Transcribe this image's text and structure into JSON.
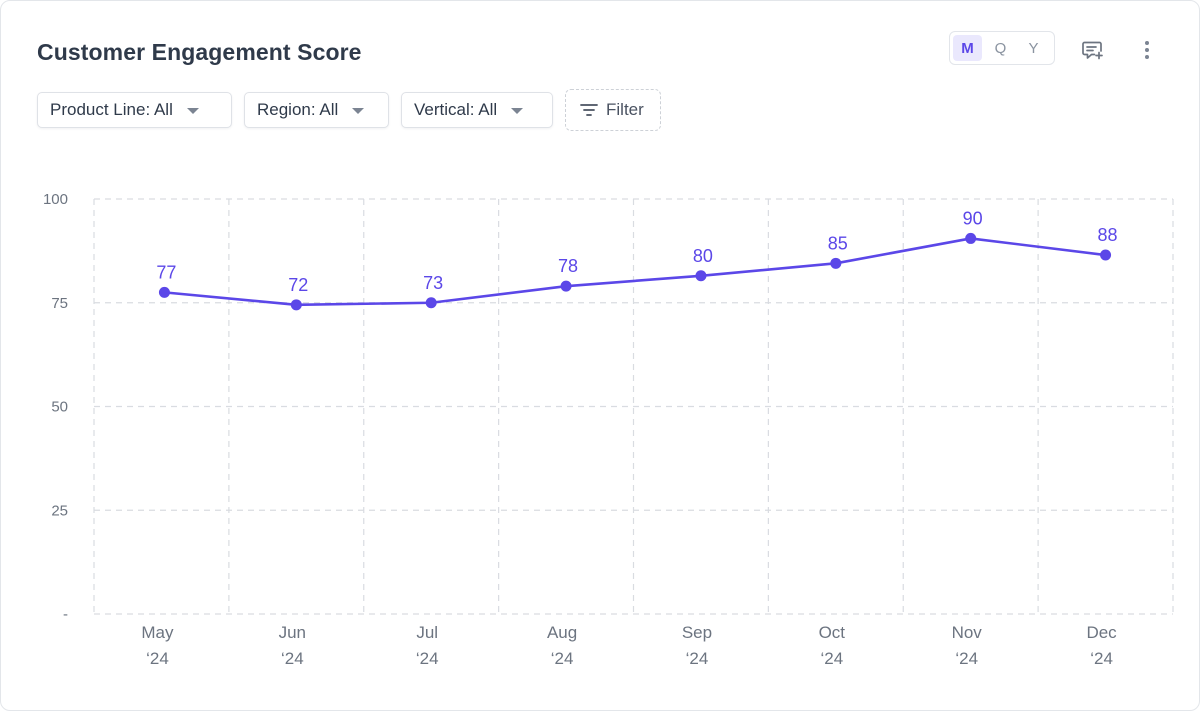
{
  "header": {
    "title": "Customer Engagement Score",
    "period_options": [
      "M",
      "Q",
      "Y"
    ],
    "active_period": "M",
    "comment_icon": "comment-add-icon",
    "more_icon": "more-vertical-icon"
  },
  "filters": {
    "product_line": "Product Line: All",
    "region": "Region: All",
    "vertical": "Vertical: All",
    "filter_label": "Filter",
    "filter_icon": "filter-lines-icon",
    "caret_icon": "caret-down-icon"
  },
  "colors": {
    "accent": "#5b47e8",
    "grid": "#d9dce1",
    "text": "#2f3a4a"
  },
  "chart_data": {
    "type": "line",
    "title": "Customer Engagement Score",
    "x_labels": [
      [
        "May",
        "‘24"
      ],
      [
        "Jun",
        "‘24"
      ],
      [
        "Jul",
        "‘24"
      ],
      [
        "Aug",
        "‘24"
      ],
      [
        "Sep",
        "‘24"
      ],
      [
        "Oct",
        "‘24"
      ],
      [
        "Nov",
        "‘24"
      ],
      [
        "Dec",
        "‘24"
      ]
    ],
    "series": [
      {
        "values": [
          77,
          72,
          73,
          78,
          80,
          85,
          90,
          88
        ],
        "plotted_values": [
          77.5,
          74.5,
          75,
          79,
          81.5,
          84.5,
          90.5,
          86.5
        ]
      }
    ],
    "ylim": [
      0,
      100
    ],
    "y_ticks": [
      0,
      25,
      50,
      75,
      100
    ],
    "y_tick_labels": [
      "-",
      "25",
      "50",
      "75",
      "100"
    ],
    "grid": true,
    "legend": "none"
  }
}
